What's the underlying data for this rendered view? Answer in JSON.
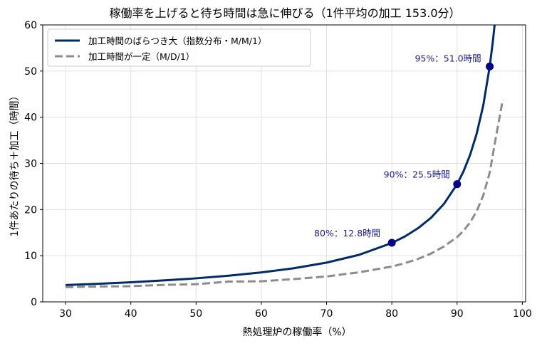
{
  "chart_data": {
    "type": "line",
    "title": "稼働率を上げると待ち時間は急に伸びる（1件平均の加工 153.0分）",
    "xlabel": "熱処理炉の稼働率（%）",
    "ylabel": "1件あたりの待ち＋加工（時間）",
    "xlim": [
      26.5,
      100.5
    ],
    "ylim": [
      0,
      60
    ],
    "xticks": [
      30,
      40,
      50,
      60,
      70,
      80,
      90,
      100
    ],
    "yticks": [
      0,
      10,
      20,
      30,
      40,
      50,
      60
    ],
    "grid": true,
    "legend_position": "top-left",
    "series": [
      {
        "name": "加工時間のばらつき大（指数分布・M/M/1）",
        "color": "#002b6b",
        "style": "solid",
        "x": [
          30,
          35,
          40,
          45,
          50,
          55,
          60,
          65,
          70,
          75,
          80,
          82,
          84,
          86,
          88,
          90,
          91,
          92,
          93,
          94,
          95,
          95.5,
          95.8
        ],
        "y": [
          3.64,
          3.92,
          4.25,
          4.64,
          5.1,
          5.67,
          6.38,
          7.29,
          8.5,
          10.2,
          12.75,
          14.17,
          15.94,
          18.21,
          21.25,
          25.5,
          28.33,
          31.88,
          36.43,
          42.5,
          51.0,
          56.67,
          60.71
        ]
      },
      {
        "name": "加工時間が一定（M/D/1）",
        "color": "#8c8c8c",
        "style": "dashed",
        "x": [
          30,
          35,
          40,
          45,
          50,
          55,
          60,
          65,
          70,
          75,
          80,
          82,
          84,
          86,
          88,
          90,
          91,
          92,
          93,
          94,
          95,
          96,
          97
        ],
        "y": [
          3.19,
          3.33,
          3.4,
          3.67,
          3.83,
          4.39,
          4.46,
          4.94,
          5.5,
          6.41,
          7.65,
          8.38,
          9.29,
          10.46,
          12.03,
          14.03,
          15.43,
          17.23,
          19.65,
          23.02,
          28.01,
          36.1,
          43.8
        ]
      }
    ],
    "markers": [
      {
        "x": 80,
        "y": 12.8,
        "label": "80%：12.8時間"
      },
      {
        "x": 90,
        "y": 25.5,
        "label": "90%：25.5時間"
      },
      {
        "x": 95,
        "y": 51.0,
        "label": "95%：51.0時間"
      }
    ],
    "marker_color": "#00008b"
  }
}
